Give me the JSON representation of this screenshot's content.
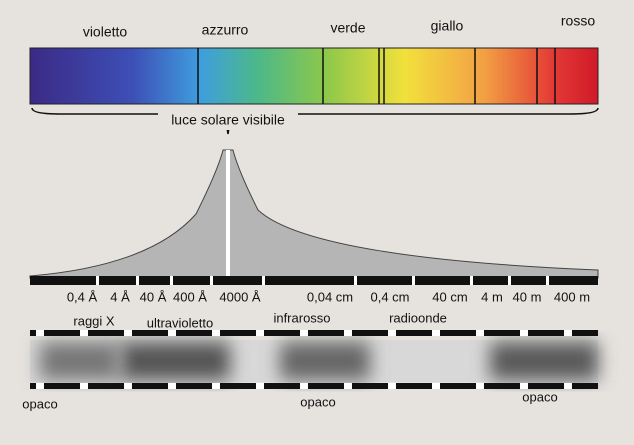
{
  "spectrum": {
    "color_names": [
      "violetto",
      "azzurro",
      "verde",
      "giallo",
      "rosso"
    ]
  },
  "visible_label": "luce solare visibile",
  "scale": {
    "ticks": [
      "0,4 Å",
      "4 Å",
      "40 Å",
      "400 Å",
      "4000 Å",
      "0,04 cm",
      "0,4 cm",
      "40 cm",
      "4 m",
      "40 m",
      "400 m"
    ]
  },
  "regions": [
    "raggi X",
    "ultravioletto",
    "infrarosso",
    "radioonde"
  ],
  "opacity": [
    "opaco",
    "opaco",
    "opaco"
  ]
}
